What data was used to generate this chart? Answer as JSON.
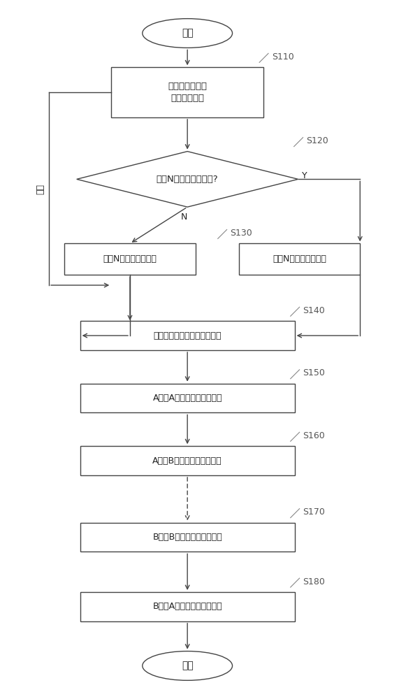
{
  "bg_color": "#ffffff",
  "fig_width": 5.71,
  "fig_height": 10.0,
  "dpi": 100,
  "start_label": "开始",
  "end_label": "结束",
  "s110_label": "获取硬件授权控\n制器物理标识",
  "s120_label": "存在N对非对称密钥对?",
  "s130l_label": "产生N个非对称密钥对",
  "s130r_label": "读取N个非对称密钥对",
  "s140_label": "对组态存档数据进行摘要计算",
  "s150_label": "A采用A私钥对摘要进行签名",
  "s160_label": "A采用B公钥对存档进行加密",
  "s170_label": "B采用B私钥对存档进行解密",
  "s180_label": "B采用A公钥对摘要进行验证",
  "loop_label": "存续",
  "n_label": "N",
  "y_label": "Y",
  "step_labels": [
    "S110",
    "S120",
    "S130",
    "S140",
    "S150",
    "S160",
    "S170",
    "S180"
  ],
  "line_color": "#444444",
  "text_color": "#222222",
  "box_color": "#ffffff"
}
